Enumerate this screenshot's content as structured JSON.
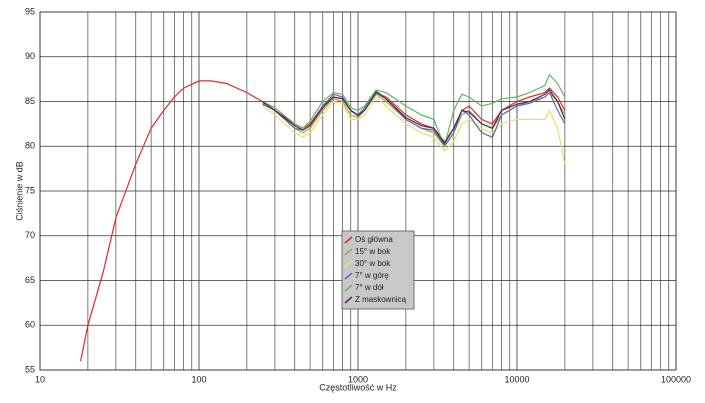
{
  "chart_data": {
    "type": "line",
    "x_label": "Częstotliwość w Hz",
    "y_label": "Ciśnienie w dB",
    "x": [
      18,
      20,
      25,
      30,
      40,
      50,
      60,
      70,
      80,
      100,
      120,
      150,
      200,
      250,
      300,
      400,
      450,
      500,
      600,
      700,
      800,
      900,
      1000,
      1100,
      1300,
      1500,
      2000,
      2500,
      3000,
      3500,
      4000,
      4500,
      5000,
      6000,
      7000,
      8000,
      10000,
      12000,
      15000,
      16000,
      18000,
      20000
    ],
    "series": [
      {
        "name": "Oś główna",
        "color": "#e02a2a",
        "values": [
          56,
          60,
          66,
          72,
          78,
          82,
          84,
          85.5,
          86.5,
          87.3,
          87.3,
          87,
          86,
          85,
          84,
          82.5,
          82,
          82.5,
          84.5,
          85.5,
          85.3,
          84,
          83.5,
          84,
          86,
          85.5,
          83.5,
          82.5,
          82,
          80.5,
          82,
          84,
          84.5,
          83,
          82.5,
          84,
          85,
          85.5,
          86,
          86.5,
          85.5,
          84
        ]
      },
      {
        "name": "15° w bok",
        "color": "#a8a838",
        "values": [
          null,
          null,
          null,
          null,
          null,
          null,
          null,
          null,
          null,
          null,
          null,
          null,
          null,
          84.8,
          84,
          82,
          81.5,
          82,
          84,
          85.3,
          85,
          83.5,
          83.2,
          84,
          85.8,
          85,
          83,
          82,
          81.5,
          80,
          81.5,
          83.5,
          84,
          82.5,
          82,
          83.5,
          84.5,
          85,
          85.5,
          86,
          85,
          83.5
        ]
      },
      {
        "name": "30° w bok",
        "color": "#e6e070",
        "values": [
          null,
          null,
          null,
          null,
          null,
          null,
          null,
          null,
          null,
          null,
          null,
          null,
          null,
          84.5,
          83.5,
          81.5,
          81,
          81.5,
          83.5,
          85,
          84.8,
          83,
          83,
          83.5,
          85.5,
          84.5,
          82.5,
          81.5,
          81,
          79.5,
          80.5,
          82.5,
          83,
          82,
          81.5,
          82.5,
          83,
          83,
          83,
          84,
          82,
          78
        ]
      },
      {
        "name": "7° w górę",
        "color": "#5a6ab0",
        "values": [
          null,
          null,
          null,
          null,
          null,
          null,
          null,
          null,
          null,
          null,
          null,
          null,
          null,
          84.7,
          84,
          82,
          81.8,
          82.3,
          84.5,
          85.8,
          85.5,
          84,
          83.5,
          84.3,
          86.2,
          85.3,
          83,
          82,
          81.8,
          80,
          81.5,
          84,
          83.5,
          81.5,
          81,
          83.5,
          84.5,
          84.8,
          85.5,
          86,
          84,
          82.5
        ]
      },
      {
        "name": "7° w dół",
        "color": "#5cb85c",
        "values": [
          null,
          null,
          null,
          null,
          null,
          null,
          null,
          null,
          null,
          null,
          null,
          null,
          null,
          85,
          84.3,
          82.5,
          82,
          82.8,
          85,
          86,
          85.8,
          84.3,
          84,
          84.5,
          86.3,
          86,
          84.5,
          83.5,
          83,
          80,
          84,
          85.8,
          85.5,
          84.5,
          84.8,
          85.3,
          85.5,
          86,
          86.8,
          88,
          87,
          85.5
        ]
      },
      {
        "name": "Z maskownicą",
        "color": "#4a2a50",
        "values": [
          null,
          null,
          null,
          null,
          null,
          null,
          null,
          null,
          null,
          null,
          null,
          null,
          null,
          85,
          84,
          82.3,
          81.8,
          82.3,
          84.3,
          85.5,
          85.3,
          84,
          83.4,
          84,
          86,
          85.3,
          83.2,
          82.3,
          82,
          80.3,
          82,
          84,
          83.8,
          82.5,
          82,
          84,
          84.7,
          85,
          85.8,
          86.3,
          85,
          83
        ]
      }
    ],
    "xlim": [
      10,
      100000
    ],
    "xticks": [
      10,
      100,
      1000,
      10000,
      100000
    ],
    "log_x": true,
    "ylim": [
      55,
      95
    ],
    "yticks": [
      55,
      60,
      65,
      70,
      75,
      80,
      85,
      90,
      95
    ],
    "grid": true,
    "minor_grid": true,
    "legend": "center"
  }
}
